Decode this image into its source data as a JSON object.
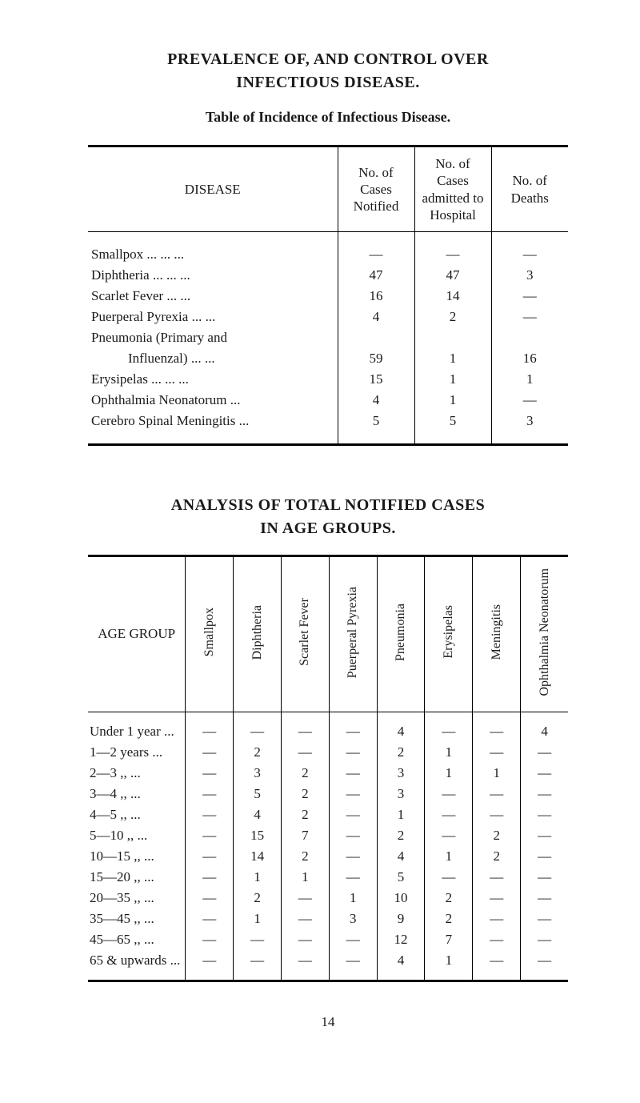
{
  "title_lines": [
    "PREVALENCE OF, AND CONTROL OVER",
    "INFECTIOUS DISEASE."
  ],
  "subtitle1": "Table of Incidence of Infectious Disease.",
  "table1": {
    "headers": {
      "disease": "DISEASE",
      "notified": "No. of\nCases\nNotified",
      "admitted": "No. of\nCases\nadmitted to\nHospital",
      "deaths": "No. of\nDeaths"
    },
    "rows": [
      {
        "label": "Smallpox    ...    ...    ...",
        "indent": false,
        "notified": "—",
        "admitted": "—",
        "deaths": "—"
      },
      {
        "label": "Diphtheria    ...    ...    ...",
        "indent": false,
        "notified": "47",
        "admitted": "47",
        "deaths": "3"
      },
      {
        "label": "Scarlet Fever    ...    ...",
        "indent": false,
        "notified": "16",
        "admitted": "14",
        "deaths": "—"
      },
      {
        "label": "Puerperal Pyrexia    ...    ...",
        "indent": false,
        "notified": "4",
        "admitted": "2",
        "deaths": "—"
      },
      {
        "label": "Pneumonia (Primary and",
        "indent": false,
        "notified": "",
        "admitted": "",
        "deaths": ""
      },
      {
        "label": "Influenzal)    ...    ...",
        "indent": true,
        "notified": "59",
        "admitted": "1",
        "deaths": "16"
      },
      {
        "label": "Erysipelas    ...    ...    ...",
        "indent": false,
        "notified": "15",
        "admitted": "1",
        "deaths": "1"
      },
      {
        "label": "Ophthalmia Neonatorum    ...",
        "indent": false,
        "notified": "4",
        "admitted": "1",
        "deaths": "—"
      },
      {
        "label": "Cerebro Spinal Meningitis   ...",
        "indent": false,
        "notified": "5",
        "admitted": "5",
        "deaths": "3"
      }
    ]
  },
  "subtitle2_lines": [
    "ANALYSIS OF TOTAL NOTIFIED CASES",
    "IN AGE GROUPS."
  ],
  "table2": {
    "age_header": "AGE GROUP",
    "columns": [
      "Smallpox",
      "Diphtheria",
      "Scarlet Fever",
      "Puerperal Pyrexia",
      "Pneumonia",
      "Erysipelas",
      "Meningitis",
      "Ophthalmia Neonatorum"
    ],
    "rows": [
      {
        "label": "Under 1 year ...",
        "cells": [
          "—",
          "—",
          "—",
          "—",
          "4",
          "—",
          "—",
          "4"
        ]
      },
      {
        "label": "1—2 years   ...",
        "cells": [
          "—",
          "2",
          "—",
          "—",
          "2",
          "1",
          "—",
          "—"
        ]
      },
      {
        "label": "2—3   ,,   ...",
        "cells": [
          "—",
          "3",
          "2",
          "—",
          "3",
          "1",
          "1",
          "—"
        ]
      },
      {
        "label": "3—4   ,,   ...",
        "cells": [
          "—",
          "5",
          "2",
          "—",
          "3",
          "—",
          "—",
          "—"
        ]
      },
      {
        "label": "4—5   ,,   ...",
        "cells": [
          "—",
          "4",
          "2",
          "—",
          "1",
          "—",
          "—",
          "—"
        ]
      },
      {
        "label": "5—10  ,,   ...",
        "cells": [
          "—",
          "15",
          "7",
          "—",
          "2",
          "—",
          "2",
          "—"
        ]
      },
      {
        "label": "10—15 ,,   ...",
        "cells": [
          "—",
          "14",
          "2",
          "—",
          "4",
          "1",
          "2",
          "—"
        ]
      },
      {
        "label": "15—20 ,,   ...",
        "cells": [
          "—",
          "1",
          "1",
          "—",
          "5",
          "—",
          "—",
          "—"
        ]
      },
      {
        "label": "20—35 ,,   ...",
        "cells": [
          "—",
          "2",
          "—",
          "1",
          "10",
          "2",
          "—",
          "—"
        ]
      },
      {
        "label": "35—45 ,,   ...",
        "cells": [
          "—",
          "1",
          "—",
          "3",
          "9",
          "2",
          "—",
          "—"
        ]
      },
      {
        "label": "45—65 ,,   ...",
        "cells": [
          "—",
          "—",
          "—",
          "—",
          "12",
          "7",
          "—",
          "—"
        ]
      },
      {
        "label": "65 & upwards ...",
        "cells": [
          "—",
          "—",
          "—",
          "—",
          "4",
          "1",
          "—",
          "—"
        ]
      }
    ]
  },
  "page_number": "14"
}
